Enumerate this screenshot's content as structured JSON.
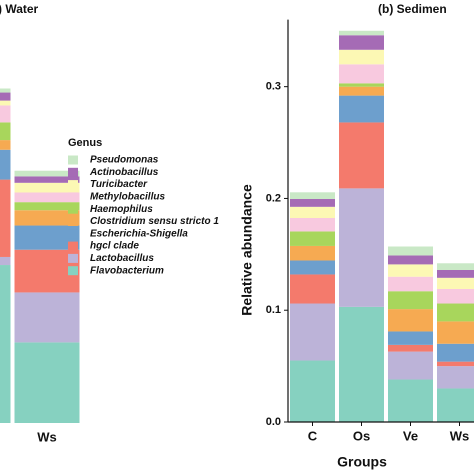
{
  "chart_data": [
    {
      "type": "bar",
      "stacked": true,
      "title": ") Water",
      "categories": [
        null,
        "Ws"
      ],
      "ylim": [
        0,
        0.5
      ],
      "legend_title": "Genus",
      "series": [
        {
          "name": "Flavobacterium",
          "color": "#86d1c0",
          "values": [
            0.196,
            0.1
          ]
        },
        {
          "name": "Lactobacillus",
          "color": "#bcb3d8",
          "values": [
            0.01,
            0.062
          ]
        },
        {
          "name": "hgcl clade",
          "color": "#f47a6c",
          "values": [
            0.096,
            0.053
          ]
        },
        {
          "name": "Escherichia-Shigella",
          "color": "#6d9fcd",
          "values": [
            0.037,
            0.03
          ]
        },
        {
          "name": "Clostridium sensu stricto 1",
          "color": "#f6aa52",
          "values": [
            0.012,
            0.019
          ]
        },
        {
          "name": "Haemophilus",
          "color": "#a8d65c",
          "values": [
            0.022,
            0.01
          ]
        },
        {
          "name": "Methylobacillus",
          "color": "#f8c9df",
          "values": [
            0.021,
            0.012
          ]
        },
        {
          "name": "Turicibacter",
          "color": "#fcf8b4",
          "values": [
            0.006,
            0.012
          ]
        },
        {
          "name": "Actinobacillus",
          "color": "#a56bb5",
          "values": [
            0.01,
            0.008
          ]
        },
        {
          "name": "Pseudomonas",
          "color": "#c9e8c6",
          "values": [
            0.005,
            0.007
          ]
        }
      ]
    },
    {
      "type": "bar",
      "stacked": true,
      "title": "(b) Sedimen",
      "x_label": "Groups",
      "y_label": "Relative abundance",
      "categories": [
        "C",
        "Os",
        "Ve",
        "Ws"
      ],
      "ylim": [
        0,
        0.36
      ],
      "yticks": [
        {
          "value": 0,
          "label": "0.0"
        },
        0.1,
        0.2,
        0.3
      ],
      "series": [
        {
          "color": "#86d1c0",
          "values": [
            0.055,
            0.103,
            0.038,
            0.03
          ]
        },
        {
          "color": "#bcb3d8",
          "values": [
            0.051,
            0.106,
            0.025,
            0.02
          ]
        },
        {
          "color": "#f47a6c",
          "values": [
            0.026,
            0.059,
            0.006,
            0.004
          ]
        },
        {
          "color": "#6d9fcd",
          "values": [
            0.0125,
            0.024,
            0.012,
            0.016
          ]
        },
        {
          "color": "#f6aa52",
          "values": [
            0.013,
            0.008,
            0.02,
            0.02
          ]
        },
        {
          "color": "#a8d65c",
          "values": [
            0.013,
            0.003,
            0.016,
            0.016
          ]
        },
        {
          "color": "#f8c9df",
          "values": [
            0.012,
            0.017,
            0.013,
            0.013
          ]
        },
        {
          "color": "#fcf8b4",
          "values": [
            0.01,
            0.013,
            0.011,
            0.01
          ]
        },
        {
          "color": "#a56bb5",
          "values": [
            0.007,
            0.013,
            0.008,
            0.007
          ]
        },
        {
          "color": "#c9e8c6",
          "values": [
            0.006,
            0.004,
            0.008,
            0.006
          ]
        }
      ]
    }
  ]
}
